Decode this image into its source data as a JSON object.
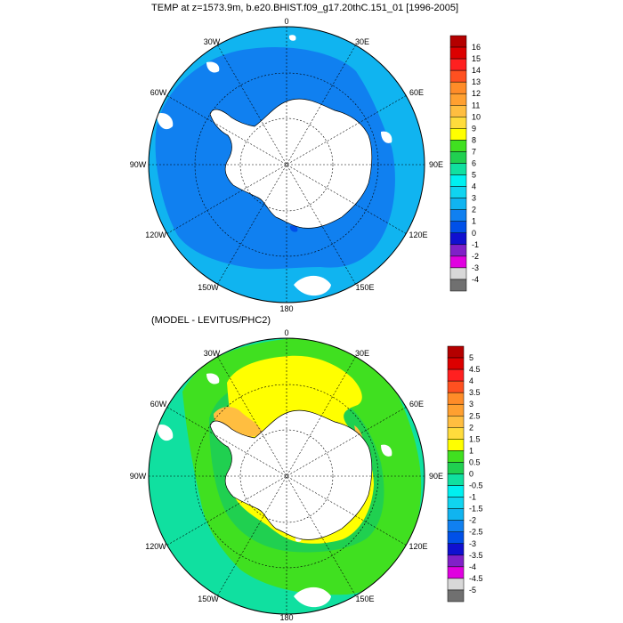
{
  "panels": [
    {
      "title": "TEMP at z=1573.9m, b.e20.BHIST.f09_g17.20thC.151_01 [1996-2005]",
      "lon_labels": {
        "n": "0",
        "ne": "30E",
        "e": "60E",
        "e2": "90E",
        "se": "120E",
        "se2": "150E",
        "s": "180",
        "sw": "150W",
        "w2": "120W",
        "w": "90W",
        "nw": "60W",
        "nw2": "30W"
      },
      "colorbar": {
        "labels": [
          "16",
          "15",
          "14",
          "13",
          "12",
          "11",
          "10",
          "9",
          "8",
          "7",
          "6",
          "5",
          "4",
          "3",
          "2",
          "1",
          "0",
          "-1",
          "-2",
          "-3",
          "-4"
        ],
        "colors": [
          "#b40000",
          "#dc0000",
          "#ff2020",
          "#ff5020",
          "#ff8c28",
          "#ffa030",
          "#ffbe40",
          "#ffdc3c",
          "#ffff00",
          "#40e020",
          "#20d050",
          "#10e0a0",
          "#00f0f0",
          "#10d4f0",
          "#10b4f0",
          "#1080f0",
          "#0050e8",
          "#1010d0",
          "#8020c8",
          "#e000e0",
          "#d8d8d8",
          "#707070"
        ]
      }
    },
    {
      "title": "(MODEL - LEVITUS/PHC2)",
      "lon_labels": {
        "n": "0",
        "ne": "30E",
        "e": "60E",
        "e2": "90E",
        "se": "120E",
        "se2": "150E",
        "s": "180",
        "sw": "150W",
        "w2": "120W",
        "w": "90W",
        "nw": "60W",
        "nw2": "30W"
      },
      "colorbar": {
        "labels": [
          "5",
          "4.5",
          "4",
          "3.5",
          "3",
          "2.5",
          "2",
          "1.5",
          "1",
          "0.5",
          "0",
          "-0.5",
          "-1",
          "-1.5",
          "-2",
          "-2.5",
          "-3",
          "-3.5",
          "-4",
          "-4.5",
          "-5"
        ],
        "colors": [
          "#b40000",
          "#dc0000",
          "#ff2020",
          "#ff5020",
          "#ff8c28",
          "#ffa030",
          "#ffbe40",
          "#ffdc3c",
          "#ffff00",
          "#40e020",
          "#20d050",
          "#10e0a0",
          "#00f0f0",
          "#10d4f0",
          "#10b4f0",
          "#1080f0",
          "#0050e8",
          "#1010d0",
          "#8020c8",
          "#e000e0",
          "#d8d8d8",
          "#707070"
        ]
      }
    }
  ]
}
